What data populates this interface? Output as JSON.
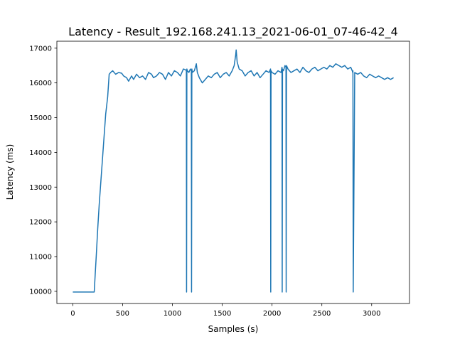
{
  "chart_data": {
    "type": "line",
    "title": "Latency - Result_192.168.241.13_2021-06-01_07-46-42_4",
    "xlabel": "Samples  (s)",
    "ylabel": "Latency (ms)",
    "xlim": [
      -160,
      3380
    ],
    "ylim": [
      9650,
      17200
    ],
    "xticks": [
      0,
      500,
      1000,
      1500,
      2000,
      2500,
      3000
    ],
    "yticks": [
      10000,
      11000,
      12000,
      13000,
      14000,
      15000,
      16000,
      17000
    ],
    "grid": false,
    "legend": "none",
    "color": "#1f77b4",
    "series": [
      {
        "x": [
          0,
          100,
          215,
          225,
          235,
          250,
          265,
          280,
          295,
          310,
          330,
          350,
          365,
          380,
          400,
          430,
          460,
          490,
          510,
          540,
          560,
          590,
          610,
          640,
          670,
          700,
          730,
          760,
          790,
          810,
          840,
          870,
          900,
          930,
          960,
          990,
          1020,
          1050,
          1080,
          1110,
          1130,
          1140,
          1142,
          1145,
          1150,
          1165,
          1180,
          1190,
          1192,
          1195,
          1200,
          1220,
          1240,
          1250,
          1270,
          1300,
          1330,
          1360,
          1390,
          1420,
          1450,
          1480,
          1510,
          1540,
          1570,
          1600,
          1620,
          1635,
          1640,
          1650,
          1670,
          1700,
          1730,
          1760,
          1790,
          1820,
          1850,
          1880,
          1910,
          1940,
          1970,
          1985,
          1987,
          1990,
          2000,
          2030,
          2060,
          2090,
          2100,
          2102,
          2105,
          2115,
          2130,
          2140,
          2142,
          2145,
          2160,
          2190,
          2220,
          2250,
          2280,
          2310,
          2340,
          2370,
          2400,
          2430,
          2460,
          2490,
          2520,
          2550,
          2580,
          2610,
          2640,
          2670,
          2700,
          2730,
          2760,
          2790,
          2805,
          2810,
          2812,
          2815,
          2830,
          2860,
          2890,
          2920,
          2950,
          2980,
          3010,
          3040,
          3070,
          3100,
          3130,
          3160,
          3190,
          3220
        ],
        "y": [
          9980,
          9980,
          9980,
          10500,
          11000,
          11800,
          12500,
          13100,
          13700,
          14300,
          15100,
          15600,
          16250,
          16300,
          16350,
          16250,
          16300,
          16280,
          16200,
          16150,
          16050,
          16200,
          16100,
          16250,
          16150,
          16200,
          16100,
          16300,
          16250,
          16150,
          16200,
          16300,
          16250,
          16100,
          16300,
          16200,
          16350,
          16300,
          16200,
          16400,
          16380,
          16350,
          9980,
          16400,
          16350,
          16300,
          16400,
          16350,
          9980,
          16400,
          16300,
          16350,
          16550,
          16300,
          16150,
          16000,
          16100,
          16200,
          16150,
          16250,
          16300,
          16150,
          16250,
          16300,
          16200,
          16350,
          16500,
          16800,
          16950,
          16600,
          16400,
          16350,
          16200,
          16300,
          16350,
          16200,
          16300,
          16150,
          16250,
          16350,
          16300,
          16400,
          9980,
          16350,
          16300,
          16250,
          16350,
          16300,
          16450,
          9980,
          16400,
          16350,
          16500,
          16450,
          9980,
          16500,
          16400,
          16300,
          16350,
          16400,
          16300,
          16450,
          16350,
          16300,
          16400,
          16450,
          16350,
          16400,
          16450,
          16400,
          16500,
          16450,
          16550,
          16500,
          16450,
          16500,
          16400,
          16450,
          16350,
          16300,
          16350,
          9980,
          16300,
          16250,
          16300,
          16200,
          16150,
          16250,
          16200,
          16150,
          16200,
          16150,
          16100,
          16150,
          16100,
          16150
        ]
      }
    ]
  }
}
